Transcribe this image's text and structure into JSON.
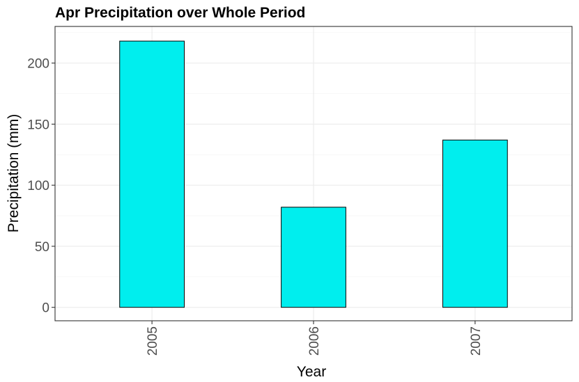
{
  "chart_data": {
    "type": "bar",
    "title": "Apr Precipitation over Whole Period",
    "xlabel": "Year",
    "ylabel": "Precipitation (mm)",
    "categories": [
      "2005",
      "2006",
      "2007"
    ],
    "values": [
      218,
      82,
      137
    ],
    "ylim": [
      -11,
      230
    ],
    "y_ticks": [
      0,
      50,
      100,
      150,
      200
    ],
    "y_tick_labels": [
      "0",
      "50",
      "100",
      "150",
      "200"
    ],
    "grid": true,
    "bar_fill": "#00EEEE",
    "bar_outline": "#000000",
    "x_tick_label_rotation": "vertical"
  }
}
